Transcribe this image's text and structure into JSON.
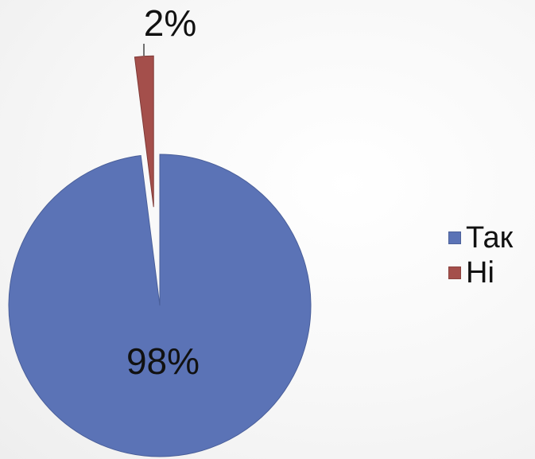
{
  "chart_data": {
    "type": "pie",
    "title": "",
    "categories": [
      "Так",
      "Ні"
    ],
    "values": [
      98,
      2
    ],
    "data_labels": [
      "98%",
      "2%"
    ],
    "colors": [
      "#5B73B6",
      "#A44F4B"
    ],
    "exploded": true,
    "legend_position": "right"
  }
}
